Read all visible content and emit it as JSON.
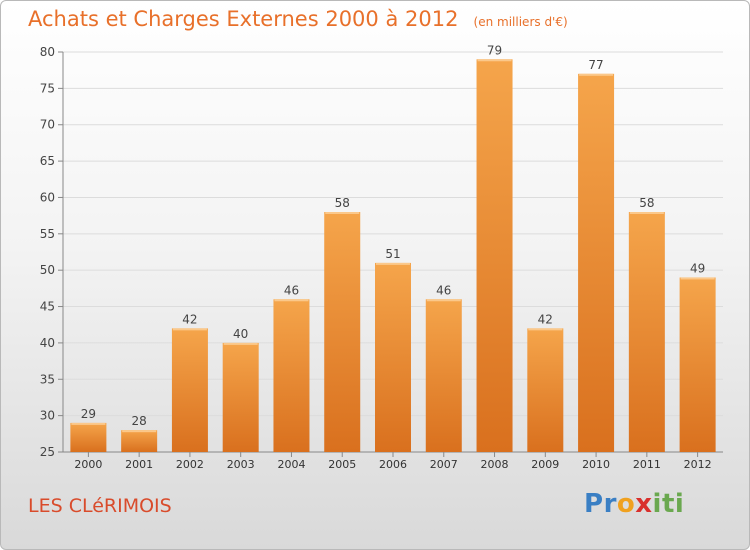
{
  "title": "Achats et Charges Externes 2000 à 2012",
  "unit_note": "(en milliers d'€)",
  "place": "LES CLéRIMOIS",
  "logo": {
    "text": "Proxiti",
    "letters": [
      "P",
      "r",
      "o",
      "x",
      "i",
      "t",
      "i"
    ],
    "colors": [
      "#3a7fc4",
      "#3a7fc4",
      "#f0a11f",
      "#d9302c",
      "#6aa84f",
      "#6aa84f",
      "#6aa84f"
    ]
  },
  "colors": {
    "bar_light": "#f5a54b",
    "bar_dark": "#d9701e",
    "accent": "#e8702a",
    "place": "#d94b2b"
  },
  "chart_data": {
    "type": "bar",
    "title": "Achats et Charges Externes 2000 à 2012",
    "subtitle": "(en milliers d'€)",
    "categories": [
      "2000",
      "2001",
      "2002",
      "2003",
      "2004",
      "2005",
      "2006",
      "2007",
      "2008",
      "2009",
      "2010",
      "2011",
      "2012"
    ],
    "values": [
      29,
      28,
      42,
      40,
      46,
      58,
      51,
      46,
      79,
      42,
      77,
      58,
      49
    ],
    "ylim": [
      25,
      80
    ],
    "yticks": [
      25,
      30,
      35,
      40,
      45,
      50,
      55,
      60,
      65,
      70,
      75,
      80
    ],
    "xlabel": "",
    "ylabel": "",
    "grid": true
  }
}
